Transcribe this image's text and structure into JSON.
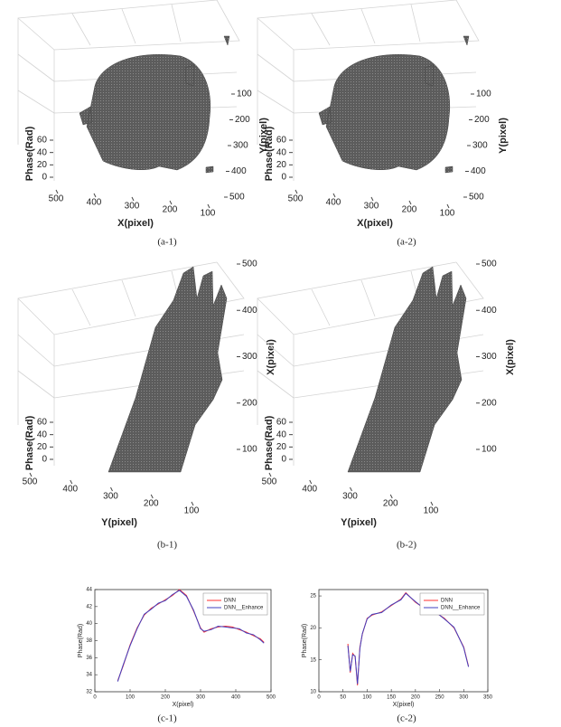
{
  "panels": [
    {
      "caption": "(a-1)",
      "z_label": "Phase(Rad)",
      "bottom_label": "X(pixel)",
      "right_label": "Y(pixel)",
      "zticks": [
        0,
        20,
        40,
        60
      ],
      "bottom_ticks": [
        500,
        400,
        300,
        200,
        100
      ],
      "right_ticks": [
        100,
        200,
        300,
        400,
        500
      ]
    },
    {
      "caption": "(a-2)",
      "z_label": "Phase(Rad)",
      "bottom_label": "X(pixel)",
      "right_label": "Y(pixel)",
      "zticks": [
        0,
        20,
        40,
        60
      ],
      "bottom_ticks": [
        500,
        400,
        300,
        200,
        100
      ],
      "right_ticks": [
        100,
        200,
        300,
        400,
        500
      ]
    },
    {
      "caption": "(b-1)",
      "z_label": "Phase(Rad)",
      "bottom_label": "Y(pixel)",
      "right_label": "X(pixel)",
      "zticks": [
        0,
        20,
        40,
        60
      ],
      "bottom_ticks": [
        500,
        400,
        300,
        200,
        100
      ],
      "right_ticks": [
        500,
        400,
        300,
        200,
        100
      ]
    },
    {
      "caption": "(b-2)",
      "z_label": "Phase(Rad)",
      "bottom_label": "Y(pixel)",
      "right_label": "X(pixel)",
      "zticks": [
        0,
        20,
        40,
        60
      ],
      "bottom_ticks": [
        500,
        400,
        300,
        200,
        100
      ],
      "right_ticks": [
        500,
        400,
        300,
        200,
        100
      ]
    }
  ],
  "chart_data": [
    {
      "type": "line",
      "caption": "(c-1)",
      "x_label": "X(pixel)",
      "y_label": "Phase(Rad)",
      "x": [
        65,
        80,
        100,
        120,
        140,
        160,
        180,
        200,
        220,
        240,
        260,
        280,
        300,
        310,
        330,
        350,
        370,
        390,
        410,
        430,
        450,
        470,
        480
      ],
      "series": [
        {
          "name": "DNN",
          "color": "#ff3030",
          "values": [
            33.3,
            35,
            37.5,
            39.5,
            41,
            41.8,
            42.3,
            42.8,
            43.3,
            44,
            43.3,
            41.5,
            39.5,
            39,
            39.4,
            39.6,
            39.7,
            39.6,
            39.3,
            39,
            38.6,
            38.2,
            37.8
          ]
        },
        {
          "name": "DNN__Enhance",
          "color": "#4040c0",
          "values": [
            33.2,
            35.1,
            37.4,
            39.4,
            41.1,
            41.7,
            42.4,
            42.7,
            43.4,
            43.9,
            43.2,
            41.6,
            39.4,
            39.1,
            39.3,
            39.7,
            39.6,
            39.5,
            39.4,
            38.9,
            38.7,
            38.1,
            37.7
          ]
        }
      ],
      "xlim": [
        0,
        500
      ],
      "xticks": [
        0,
        100,
        200,
        300,
        400,
        500
      ],
      "ylim": [
        32,
        44
      ],
      "yticks": [
        32,
        34,
        36,
        38,
        40,
        42,
        44
      ],
      "legend": "upper right"
    },
    {
      "type": "line",
      "caption": "(c-2)",
      "x_label": "X(pixel)",
      "y_label": "Phase(Rad)",
      "x": [
        60,
        65,
        70,
        75,
        80,
        85,
        90,
        100,
        110,
        130,
        150,
        170,
        180,
        200,
        220,
        240,
        260,
        280,
        300,
        310
      ],
      "series": [
        {
          "name": "DNN",
          "color": "#ff3030",
          "values": [
            17.5,
            13,
            16,
            15.5,
            11,
            17,
            19,
            21.5,
            22,
            22.5,
            23.5,
            24.5,
            25.5,
            24,
            23,
            22.5,
            21.5,
            20,
            17,
            14
          ]
        },
        {
          "name": "DNN__Enhance",
          "color": "#4040c0",
          "values": [
            17.2,
            13.2,
            15.8,
            15.6,
            11.2,
            16.8,
            19.1,
            21.4,
            22.1,
            22.4,
            23.6,
            24.4,
            25.4,
            24.1,
            22.9,
            22.6,
            21.4,
            20.1,
            16.9,
            13.9
          ]
        }
      ],
      "xlim": [
        0,
        350
      ],
      "xticks": [
        0,
        50,
        100,
        150,
        200,
        250,
        300,
        350
      ],
      "ylim": [
        10,
        26
      ],
      "yticks": [
        10,
        15,
        20,
        25
      ],
      "legend": "upper right"
    }
  ]
}
